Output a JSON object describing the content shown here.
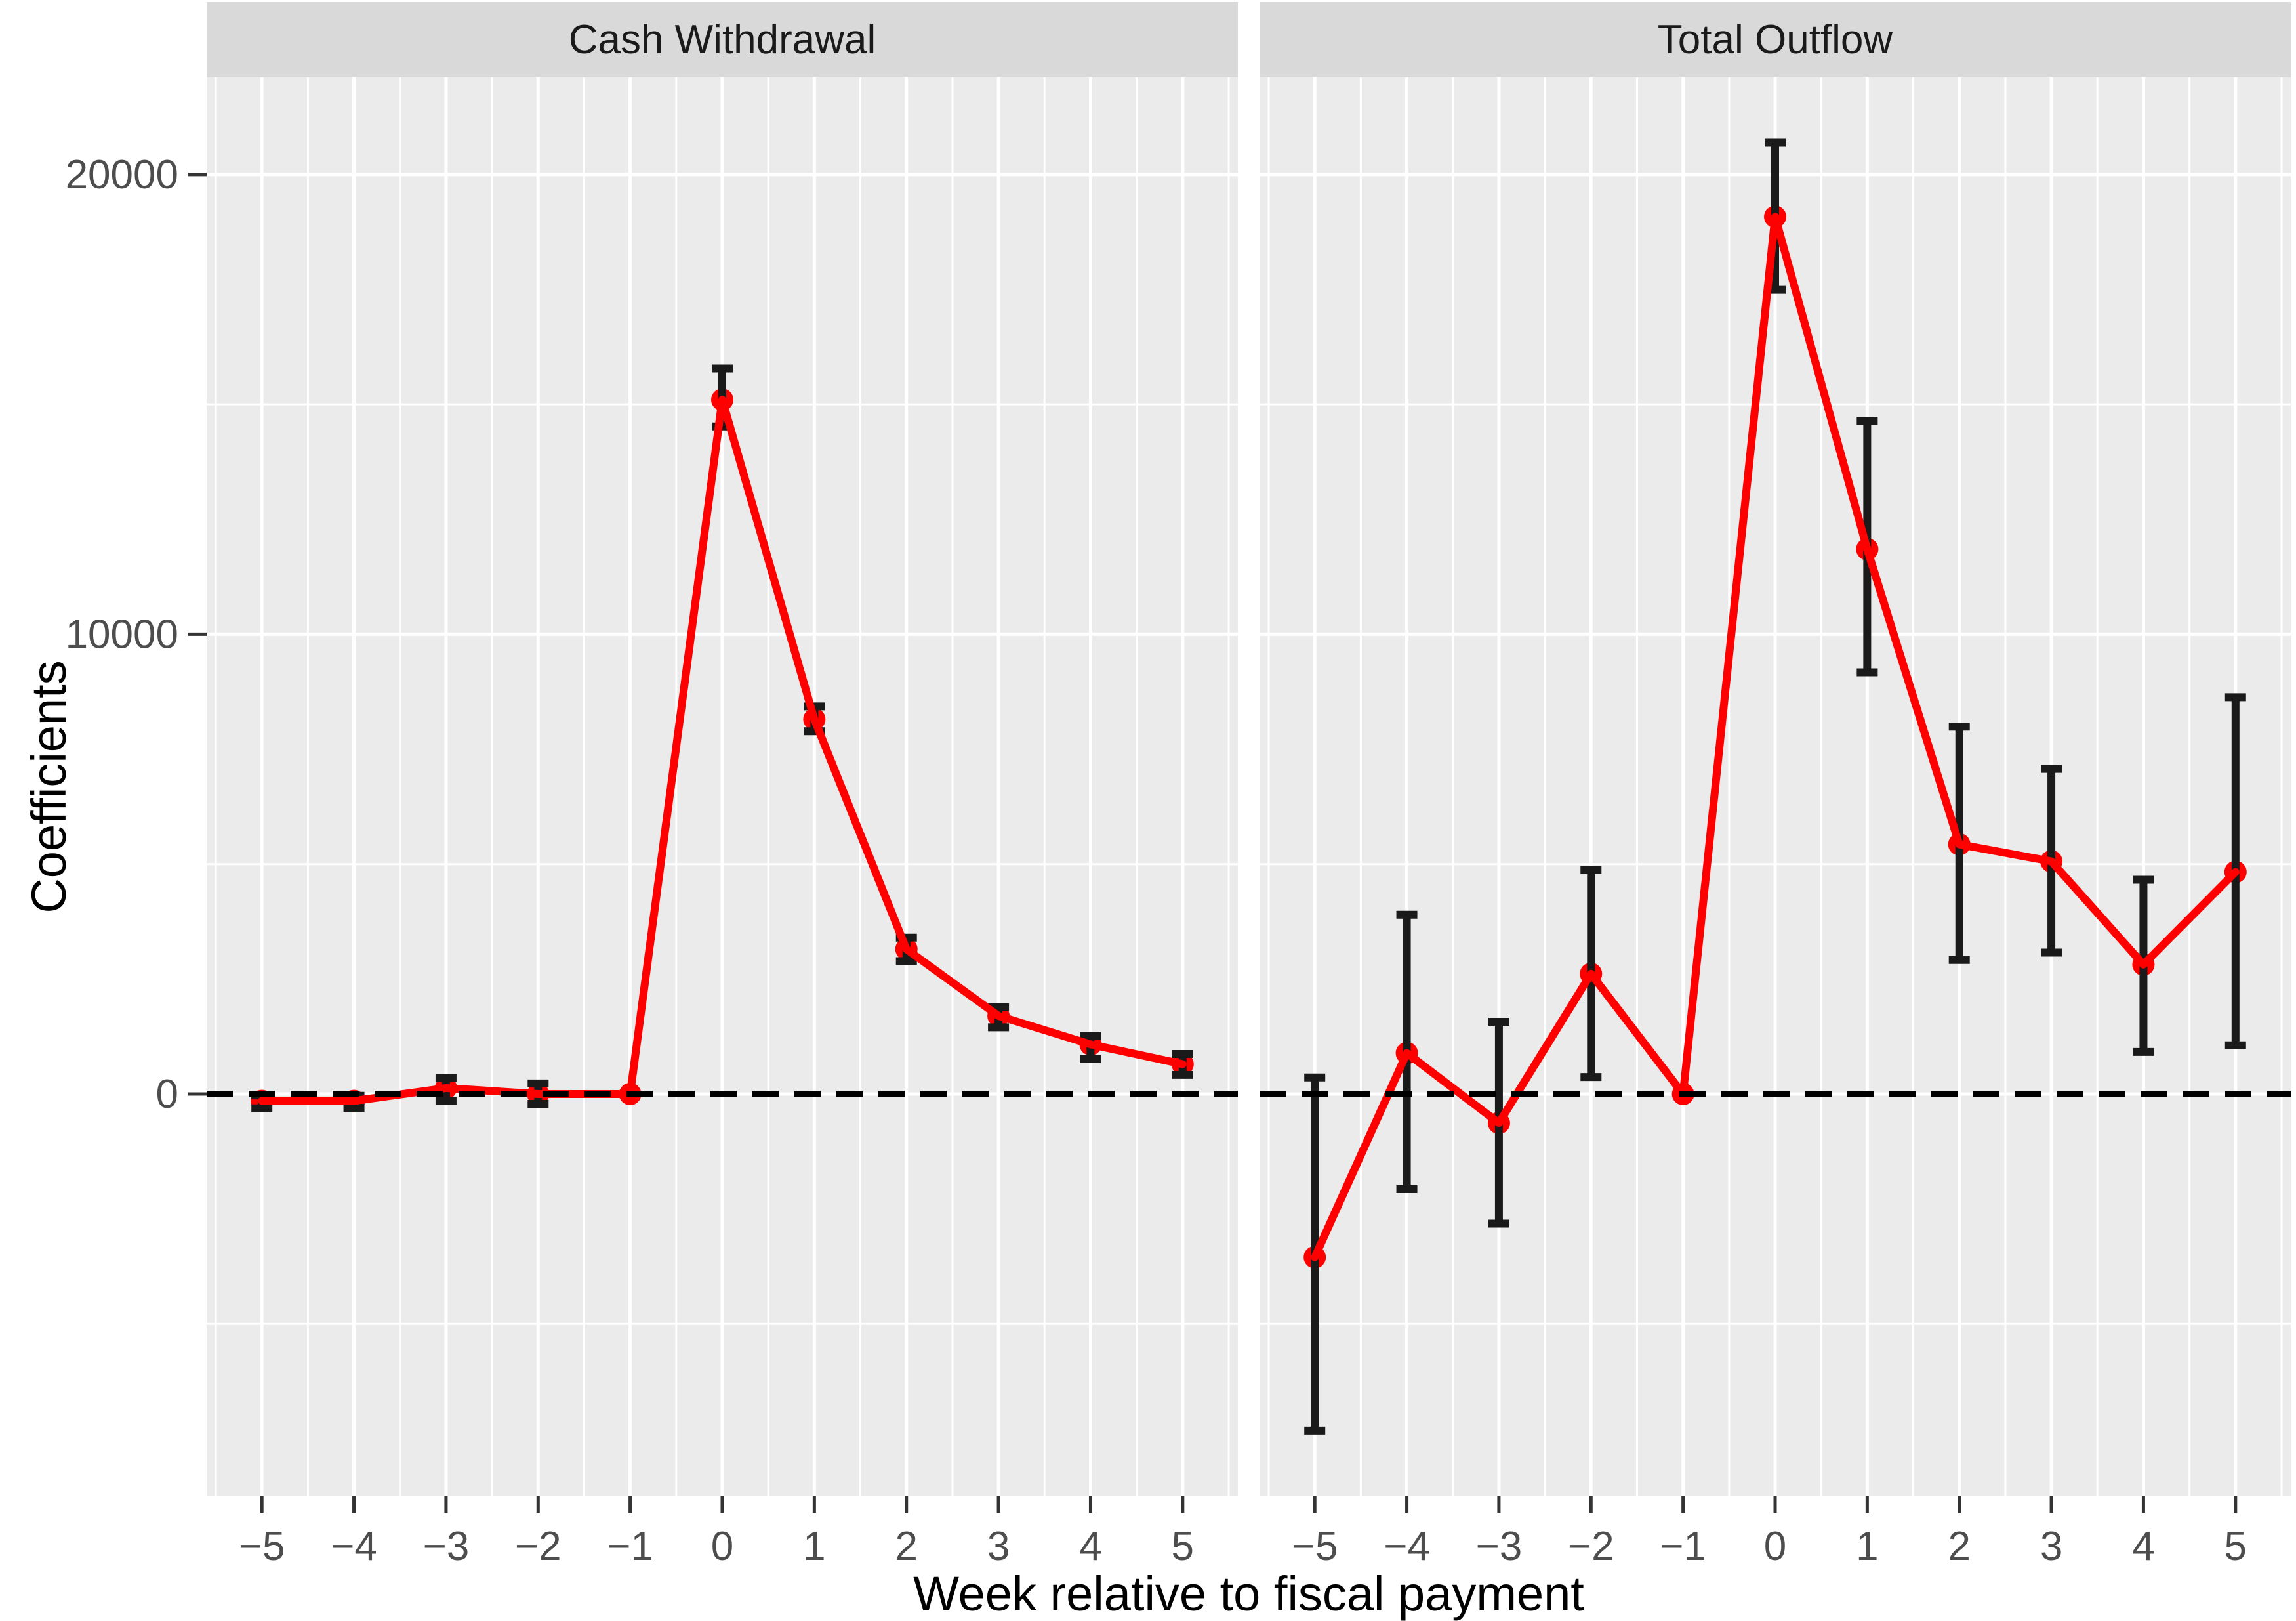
{
  "axes": {
    "y_title": "Coefficients",
    "x_title": "Week relative to fiscal payment",
    "y_tick_labels": [
      "20000",
      "10000",
      "0"
    ],
    "y_tick_values": [
      20000,
      10000,
      0
    ],
    "x_tick_labels": [
      "−5",
      "−4",
      "−3",
      "−2",
      "−1",
      "0",
      "1",
      "2",
      "3",
      "4",
      "5"
    ],
    "x_tick_values": [
      -5,
      -4,
      -3,
      -2,
      -1,
      0,
      1,
      2,
      3,
      4,
      5
    ]
  },
  "chart_data": [
    {
      "type": "line",
      "title": "Cash Withdrawal",
      "x": [
        -5,
        -4,
        -3,
        -2,
        -1,
        0,
        1,
        2,
        3,
        4,
        5
      ],
      "series": [
        {
          "name": "coefficient",
          "values": [
            -150,
            -150,
            130,
            0,
            0,
            15100,
            8150,
            3150,
            1700,
            1080,
            650
          ]
        },
        {
          "name": "ci_lower",
          "values": [
            -310,
            -300,
            -150,
            -215,
            0,
            14520,
            7890,
            2890,
            1450,
            760,
            415
          ]
        },
        {
          "name": "ci_upper",
          "values": [
            -30,
            -40,
            345,
            230,
            0,
            15780,
            8430,
            3400,
            1890,
            1270,
            870
          ]
        }
      ],
      "reference_line_y": 0,
      "ylim": [
        -8750,
        22110
      ],
      "grid": {
        "major_y": [
          0,
          10000,
          20000
        ],
        "minor_y": [
          -5000,
          5000,
          15000
        ],
        "major_x_at_ticks": true,
        "minor_x_between_ticks": true
      },
      "legend": "none"
    },
    {
      "type": "line",
      "title": "Total Outflow",
      "x": [
        -5,
        -4,
        -3,
        -2,
        -1,
        0,
        1,
        2,
        3,
        4,
        5
      ],
      "series": [
        {
          "name": "coefficient",
          "values": [
            -3550,
            890,
            -630,
            2615,
            0,
            19080,
            11850,
            5430,
            5060,
            2815,
            4830
          ]
        },
        {
          "name": "ci_lower",
          "values": [
            -7320,
            -2070,
            -2820,
            370,
            0,
            17490,
            9170,
            2915,
            3075,
            915,
            1060
          ]
        },
        {
          "name": "ci_upper",
          "values": [
            360,
            3900,
            1570,
            4870,
            0,
            20690,
            14630,
            7990,
            7070,
            4660,
            8630
          ]
        }
      ],
      "reference_line_y": 0,
      "ylim": [
        -8750,
        22110
      ],
      "grid": {
        "major_y": [
          0,
          10000,
          20000
        ],
        "minor_y": [
          -5000,
          5000,
          15000
        ],
        "major_x_at_ticks": true,
        "minor_x_between_ticks": true
      },
      "legend": "none"
    }
  ],
  "style": {
    "point_color": "#FF0000",
    "line_color": "#FF0000",
    "errorbar_color": "#1A1A1A",
    "reference_line_color": "#000000",
    "panel_bg": "#EBEBEB",
    "strip_bg": "#D9D9D9",
    "grid_color": "#FFFFFF",
    "tick_mark_color": "#333333",
    "tick_label_color": "#4D4D4D",
    "axis_title_color": "#000000"
  }
}
